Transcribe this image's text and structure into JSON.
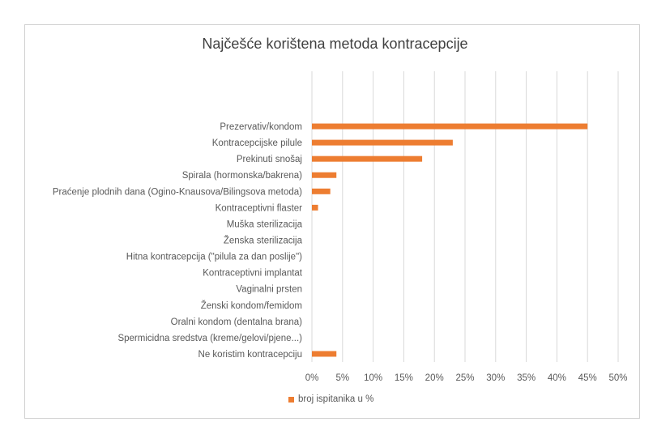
{
  "chart_data": {
    "type": "bar",
    "orientation": "horizontal",
    "title": "Najčešće korištena metoda kontracepcije",
    "xlabel": "",
    "ylabel": "",
    "categories": [
      "Prezervativ/kondom",
      "Kontracepcijske pilule",
      "Prekinuti snošaj",
      "Spirala (hormonska/bakrena)",
      "Praćenje plodnih dana (Ogino-Knausova/Bilingsova metoda)",
      "Kontraceptivni flaster",
      "Muška sterilizacija",
      "Ženska sterilizacija",
      "Hitna kontracepcija (\"pilula za dan poslije\")",
      "Kontraceptivni implantat",
      "Vaginalni prsten",
      "Ženski kondom/femidom",
      "Oralni kondom (dentalna brana)",
      "Spermicidna sredstva (kreme/gelovi/pjene...)",
      "Ne koristim kontracepciju"
    ],
    "series": [
      {
        "name": "broj ispitanika u %",
        "color": "#ed7d31",
        "values": [
          45,
          23,
          18,
          4,
          3,
          1,
          0,
          0,
          0,
          0,
          0,
          0,
          0,
          0,
          4
        ]
      }
    ],
    "xlim": [
      0,
      50
    ],
    "xticks": [
      "0%",
      "5%",
      "10%",
      "15%",
      "20%",
      "25%",
      "30%",
      "35%",
      "40%",
      "45%",
      "50%"
    ],
    "grid": true,
    "legend": "bottom"
  }
}
